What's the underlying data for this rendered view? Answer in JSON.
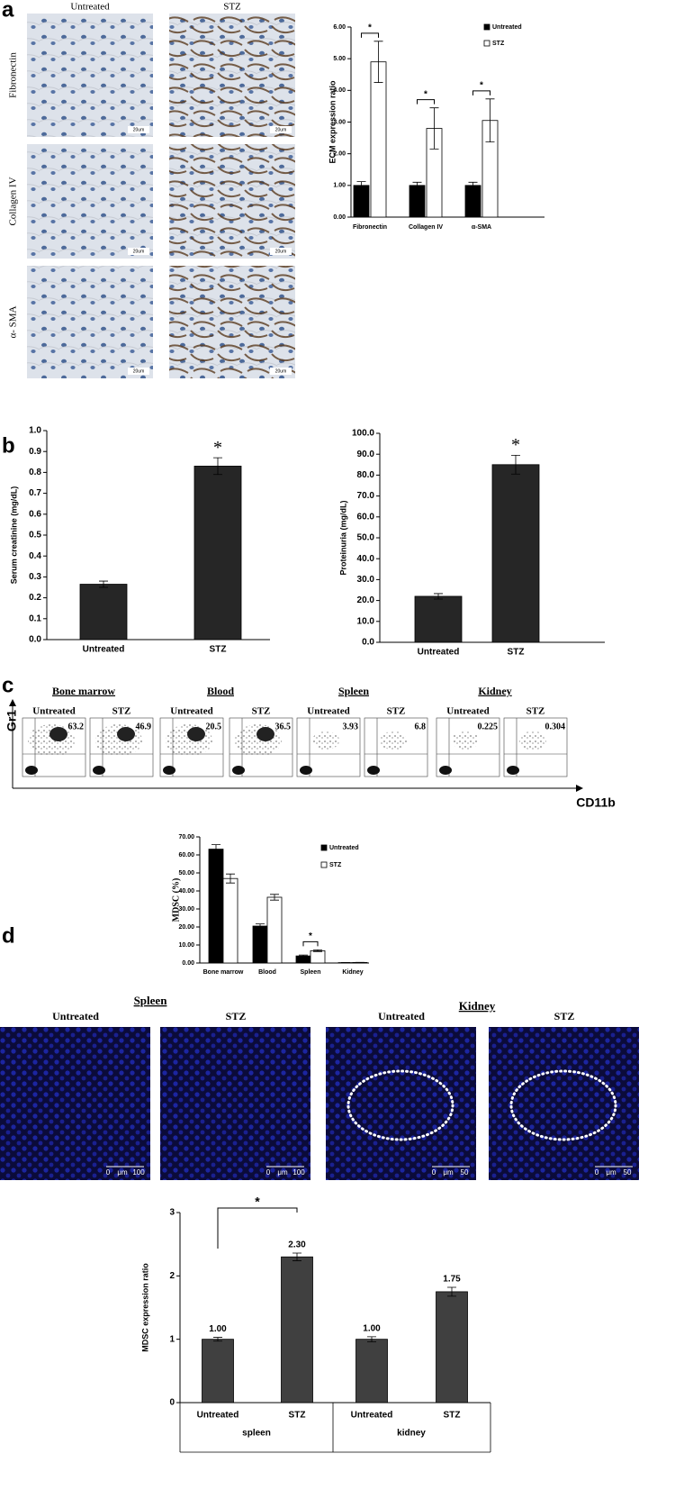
{
  "panel_labels": [
    "a",
    "b",
    "c",
    "d"
  ],
  "micrographs": {
    "columns": [
      "Untreated",
      "STZ"
    ],
    "rows": [
      "Fibronectin",
      "Collagen IV",
      "α- SMA"
    ],
    "scale_label": "20um"
  },
  "flow": {
    "groups": [
      {
        "name": "Bone marrow",
        "conditions": [
          "Untreated",
          "STZ"
        ],
        "percents": [
          63.2,
          46.9
        ]
      },
      {
        "name": "Blood",
        "conditions": [
          "Untreated",
          "STZ"
        ],
        "percents": [
          20.5,
          36.5
        ]
      },
      {
        "name": "Spleen",
        "conditions": [
          "Untreated",
          "STZ"
        ],
        "percents": [
          3.93,
          6.8
        ]
      },
      {
        "name": "Kidney",
        "conditions": [
          "Untreated",
          "STZ"
        ],
        "percents": [
          0.225,
          0.304
        ]
      }
    ],
    "y_axis": "Gr1",
    "x_axis": "CD11b"
  },
  "fluorescence": {
    "groups": [
      {
        "name": "Spleen",
        "conditions": [
          "Untreated",
          "STZ"
        ],
        "scale": [
          "0",
          "μm",
          "100"
        ]
      },
      {
        "name": "Kidney",
        "conditions": [
          "Untreated",
          "STZ"
        ],
        "scale": [
          "0",
          "μm",
          "50"
        ]
      }
    ]
  },
  "chart_data": [
    {
      "type": "bar",
      "y_label": "ECM expression ratio",
      "categories": [
        "Fibronectin",
        "Collagen IV",
        "α-SMA"
      ],
      "series": [
        {
          "name": "Untreated",
          "color": "#000000",
          "values": [
            1,
            1,
            1
          ],
          "errors": [
            0.12,
            0.1,
            0.1
          ]
        },
        {
          "name": "STZ",
          "color": "#ffffff",
          "values": [
            4.9,
            2.8,
            3.05
          ],
          "errors": [
            0.65,
            0.65,
            0.68
          ]
        }
      ],
      "ylim": [
        0,
        6
      ],
      "yticks": [
        {
          "value": 0,
          "label": "0.00"
        },
        {
          "value": 1,
          "label": "1.00"
        },
        {
          "value": 2,
          "label": "2.00"
        },
        {
          "value": 3,
          "label": "3.00"
        },
        {
          "value": 4,
          "label": "4.00"
        },
        {
          "value": 5,
          "label": "5.00"
        },
        {
          "value": 6,
          "label": "6.00"
        }
      ],
      "annotations": [
        "*",
        "*",
        "*"
      ],
      "legend": "upper right"
    },
    {
      "type": "bar",
      "y_label": "Serum creatinine (mg/dL)",
      "categories": [
        "Untreated",
        "STZ"
      ],
      "series": [
        {
          "name": "Serum creatinine",
          "color": "#262626",
          "values": [
            0.265,
            0.83
          ],
          "errors": [
            0.015,
            0.04
          ]
        }
      ],
      "ylim": [
        0,
        1
      ],
      "yticks": [
        {
          "value": 0,
          "label": "0.0"
        },
        0.1,
        0.2,
        0.3,
        0.4,
        0.5,
        0.6,
        0.7,
        0.8,
        0.9,
        {
          "value": 1,
          "label": "1.0"
        }
      ],
      "annotations": [
        "*"
      ]
    },
    {
      "type": "bar",
      "y_label": "Proteinuria (mg/dL)",
      "categories": [
        "Untreated",
        "STZ"
      ],
      "series": [
        {
          "name": "Proteinuria",
          "color": "#262626",
          "values": [
            22,
            85
          ],
          "errors": [
            1.3,
            4.5
          ]
        }
      ],
      "ylim": [
        0,
        100
      ],
      "yticks": [
        {
          "value": 0,
          "label": "0.0"
        },
        {
          "value": 10,
          "label": "10.0"
        },
        {
          "value": 20,
          "label": "20.0"
        },
        {
          "value": 30,
          "label": "30.0"
        },
        {
          "value": 40,
          "label": "40.0"
        },
        {
          "value": 50,
          "label": "50.0"
        },
        {
          "value": 60,
          "label": "60.0"
        },
        {
          "value": 70,
          "label": "70.0"
        },
        {
          "value": 80,
          "label": "80.0"
        },
        {
          "value": 90,
          "label": "90.0"
        },
        {
          "value": 100,
          "label": "100.0"
        }
      ],
      "annotations": [
        "*"
      ]
    },
    {
      "type": "bar",
      "y_label": "MDSC (%)",
      "categories": [
        "Bone marrow",
        "Blood",
        "Spleen",
        "Kidney"
      ],
      "series": [
        {
          "name": "Untreated",
          "color": "#000000",
          "values": [
            63.2,
            20.5,
            3.93,
            0.225
          ],
          "errors": [
            2.5,
            1.2,
            0.5,
            0.05
          ]
        },
        {
          "name": "STZ",
          "color": "#ffffff",
          "values": [
            46.9,
            36.5,
            6.8,
            0.304
          ],
          "errors": [
            2.5,
            1.6,
            0.5,
            0.05
          ]
        }
      ],
      "ylim": [
        0,
        70
      ],
      "yticks": [
        {
          "value": 0,
          "label": "0.00"
        },
        {
          "value": 10,
          "label": "10.00"
        },
        {
          "value": 20,
          "label": "20.00"
        },
        {
          "value": 30,
          "label": "30.00"
        },
        {
          "value": 40,
          "label": "40.00"
        },
        {
          "value": 50,
          "label": "50.00"
        },
        {
          "value": 60,
          "label": "60.00"
        },
        {
          "value": 70,
          "label": "70.00"
        }
      ],
      "annotations": [
        "*"
      ],
      "legend": "upper right"
    },
    {
      "type": "bar",
      "y_label": "MDSC expression ratio",
      "categories": [
        "Untreated",
        "STZ",
        "Untreated",
        "STZ"
      ],
      "groups": [
        "spleen",
        "kidney"
      ],
      "series": [
        {
          "name": "MDSC expression ratio",
          "color": "#404040",
          "values": [
            1,
            2.3,
            1,
            1.75
          ],
          "value_labels": [
            "1.00",
            "2.30",
            "1.00",
            "1.75"
          ],
          "errors": [
            0.03,
            0.06,
            0.04,
            0.07
          ]
        }
      ],
      "ylim": [
        0,
        3
      ],
      "yticks": [
        0,
        1,
        2,
        3
      ],
      "annotations": [
        "*"
      ]
    }
  ]
}
